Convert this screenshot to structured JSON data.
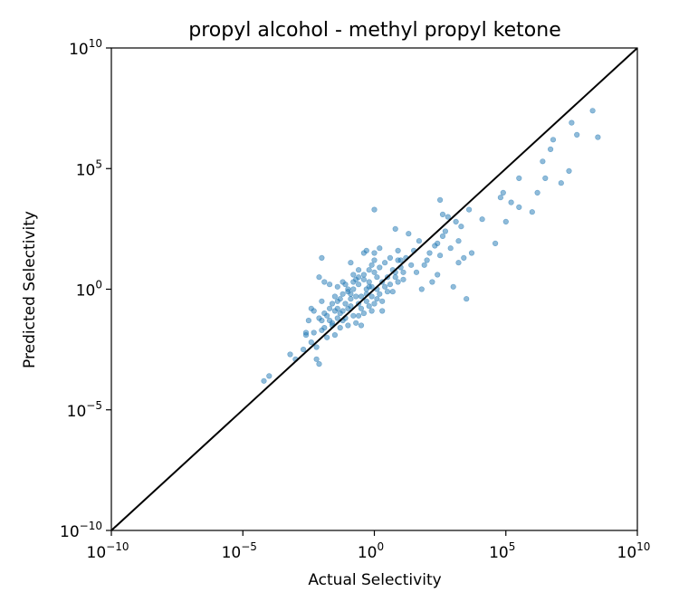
{
  "chart_data": {
    "type": "scatter",
    "title": "propyl alcohol - methyl propyl ketone",
    "xlabel": "Actual Selectivity",
    "ylabel": "Predicted Selectivity",
    "xscale": "log",
    "yscale": "log",
    "xlim": [
      1e-10,
      10000000000.0
    ],
    "ylim": [
      1e-10,
      10000000000.0
    ],
    "grid": false,
    "x_ticks": [
      {
        "base": "10",
        "exp": "−10"
      },
      {
        "base": "10",
        "exp": "−5"
      },
      {
        "base": "10",
        "exp": "0"
      },
      {
        "base": "10",
        "exp": "5"
      },
      {
        "base": "10",
        "exp": "10"
      }
    ],
    "y_ticks": [
      {
        "base": "10",
        "exp": "−10"
      },
      {
        "base": "10",
        "exp": "−5"
      },
      {
        "base": "10",
        "exp": "0"
      },
      {
        "base": "10",
        "exp": "5"
      },
      {
        "base": "10",
        "exp": "10"
      }
    ],
    "reference_line": {
      "label": "",
      "color": "#000000",
      "description": "y = x"
    },
    "point_color": "#1f77b4",
    "series": [
      {
        "points_log10": [
          [
            -4.2,
            -3.8
          ],
          [
            -4.0,
            -3.6
          ],
          [
            -3.2,
            -2.7
          ],
          [
            -2.7,
            -2.5
          ],
          [
            -2.4,
            -2.2
          ],
          [
            -2.6,
            -1.9
          ],
          [
            -2.2,
            -2.4
          ],
          [
            -2.2,
            -2.9
          ],
          [
            -2.1,
            -3.1
          ],
          [
            -2.0,
            -1.7
          ],
          [
            -2.1,
            -1.2
          ],
          [
            -2.6,
            -1.8
          ],
          [
            -1.8,
            -2.0
          ],
          [
            -1.6,
            -1.4
          ],
          [
            -1.5,
            -1.9
          ],
          [
            -1.4,
            -1.2
          ],
          [
            -1.4,
            -0.8
          ],
          [
            -1.2,
            -0.9
          ],
          [
            -1.1,
            -1.2
          ],
          [
            -1.0,
            -1.5
          ],
          [
            -0.9,
            -0.7
          ],
          [
            -0.8,
            -1.1
          ],
          [
            -0.7,
            -1.4
          ],
          [
            -0.6,
            -0.6
          ],
          [
            -0.5,
            -0.8
          ],
          [
            -0.4,
            -1.0
          ],
          [
            -0.3,
            -0.5
          ],
          [
            -0.2,
            -0.7
          ],
          [
            -0.1,
            -0.3
          ],
          [
            0.0,
            -0.6
          ],
          [
            0.1,
            0.0
          ],
          [
            0.2,
            -0.2
          ],
          [
            0.3,
            0.3
          ],
          [
            0.4,
            0.1
          ],
          [
            0.5,
            0.5
          ],
          [
            0.6,
            0.2
          ],
          [
            0.7,
            0.8
          ],
          [
            0.9,
            1.2
          ],
          [
            1.0,
            0.9
          ],
          [
            1.1,
            0.4
          ],
          [
            -1.9,
            -1.0
          ],
          [
            -1.7,
            -0.8
          ],
          [
            -1.6,
            -0.6
          ],
          [
            -1.3,
            -0.4
          ],
          [
            -1.2,
            -0.2
          ],
          [
            -1.0,
            -0.1
          ],
          [
            -0.8,
            0.0
          ],
          [
            -0.6,
            0.2
          ],
          [
            -0.4,
            0.4
          ],
          [
            -0.2,
            0.3
          ],
          [
            0.0,
            0.7
          ],
          [
            0.2,
            0.9
          ],
          [
            0.4,
            1.1
          ],
          [
            0.6,
            1.3
          ],
          [
            0.8,
            0.7
          ],
          [
            -0.5,
            -0.3
          ],
          [
            -0.3,
            -0.2
          ],
          [
            -0.1,
            0.1
          ],
          [
            0.1,
            -0.4
          ],
          [
            0.3,
            -0.9
          ],
          [
            -1.5,
            -0.9
          ],
          [
            -1.3,
            -1.0
          ],
          [
            -1.1,
            -0.6
          ],
          [
            -0.9,
            -0.4
          ],
          [
            -0.7,
            -0.3
          ],
          [
            -1.0,
            0.0
          ],
          [
            -0.8,
            0.3
          ],
          [
            -0.6,
            0.5
          ],
          [
            -0.4,
            0.6
          ],
          [
            -0.2,
            0.8
          ],
          [
            0.0,
            1.2
          ],
          [
            -0.3,
            1.6
          ],
          [
            -0.9,
            1.1
          ],
          [
            -1.5,
            -0.3
          ],
          [
            -1.7,
            -1.3
          ],
          [
            -1.9,
            -1.6
          ],
          [
            -1.3,
            -1.6
          ],
          [
            -0.5,
            -1.5
          ],
          [
            0.3,
            -0.5
          ],
          [
            0.5,
            -0.1
          ],
          [
            -2.1,
            0.5
          ],
          [
            -1.9,
            0.3
          ],
          [
            -1.1,
            0.2
          ],
          [
            -0.7,
            0.4
          ],
          [
            -0.2,
            0.1
          ],
          [
            -0.9,
            -0.2
          ],
          [
            -1.4,
            -0.5
          ],
          [
            -1.8,
            -1.1
          ],
          [
            -2.0,
            -0.5
          ],
          [
            0.1,
            0.5
          ],
          [
            -0.6,
            -1.1
          ],
          [
            -1.6,
            -1.5
          ],
          [
            -2.3,
            -1.8
          ],
          [
            -2.5,
            -1.3
          ],
          [
            -0.1,
            -0.9
          ],
          [
            -2.0,
            1.3
          ],
          [
            -0.1,
            1.0
          ],
          [
            -0.4,
            1.5
          ],
          [
            0.0,
            1.5
          ],
          [
            0.2,
            1.7
          ],
          [
            -0.3,
            0.0
          ],
          [
            0.7,
            -0.1
          ],
          [
            0.9,
            0.3
          ],
          [
            -0.6,
            0.8
          ],
          [
            -0.8,
            0.6
          ],
          [
            -1.2,
            0.3
          ],
          [
            -1.4,
            0.1
          ],
          [
            -1.7,
            0.2
          ],
          [
            -2.3,
            -0.9
          ],
          [
            -2.0,
            -1.3
          ],
          [
            -3.0,
            -2.9
          ],
          [
            -2.4,
            -0.8
          ],
          [
            -1.2,
            -1.3
          ],
          [
            -1.0,
            -0.8
          ],
          [
            0.8,
            0.5
          ],
          [
            0.0,
            3.3
          ],
          [
            1.0,
            1.2
          ],
          [
            1.2,
            1.3
          ],
          [
            1.4,
            1.0
          ],
          [
            1.6,
            0.7
          ],
          [
            1.8,
            0.0
          ],
          [
            1.5,
            1.6
          ],
          [
            2.0,
            1.2
          ],
          [
            2.2,
            0.3
          ],
          [
            2.4,
            0.6
          ],
          [
            2.5,
            1.4
          ],
          [
            1.7,
            2.0
          ],
          [
            1.3,
            2.3
          ],
          [
            2.6,
            2.2
          ],
          [
            2.9,
            1.7
          ],
          [
            3.1,
            2.8
          ],
          [
            3.3,
            2.6
          ],
          [
            3.6,
            3.3
          ],
          [
            2.8,
            3.0
          ],
          [
            3.2,
            1.1
          ],
          [
            3.5,
            -0.4
          ],
          [
            3.0,
            0.1
          ],
          [
            2.3,
            1.8
          ],
          [
            2.1,
            1.5
          ],
          [
            2.7,
            2.4
          ],
          [
            3.4,
            1.3
          ],
          [
            2.4,
            1.9
          ],
          [
            1.9,
            1.0
          ],
          [
            0.9,
            1.6
          ],
          [
            1.1,
            0.7
          ],
          [
            2.5,
            3.7
          ],
          [
            0.8,
            2.5
          ],
          [
            2.6,
            3.1
          ],
          [
            3.7,
            1.5
          ],
          [
            3.2,
            2.0
          ],
          [
            4.1,
            2.9
          ],
          [
            4.6,
            1.9
          ],
          [
            5.0,
            2.8
          ],
          [
            5.5,
            3.4
          ],
          [
            6.2,
            4.0
          ],
          [
            4.8,
            3.8
          ],
          [
            5.2,
            3.6
          ],
          [
            6.0,
            3.2
          ],
          [
            7.1,
            4.4
          ],
          [
            7.4,
            4.9
          ],
          [
            6.7,
            5.8
          ],
          [
            7.7,
            6.4
          ],
          [
            8.5,
            6.3
          ],
          [
            6.4,
            5.3
          ],
          [
            4.9,
            4.0
          ],
          [
            6.5,
            4.6
          ],
          [
            7.5,
            6.9
          ],
          [
            5.5,
            4.6
          ],
          [
            6.8,
            6.2
          ],
          [
            8.3,
            7.4
          ]
        ]
      }
    ]
  }
}
